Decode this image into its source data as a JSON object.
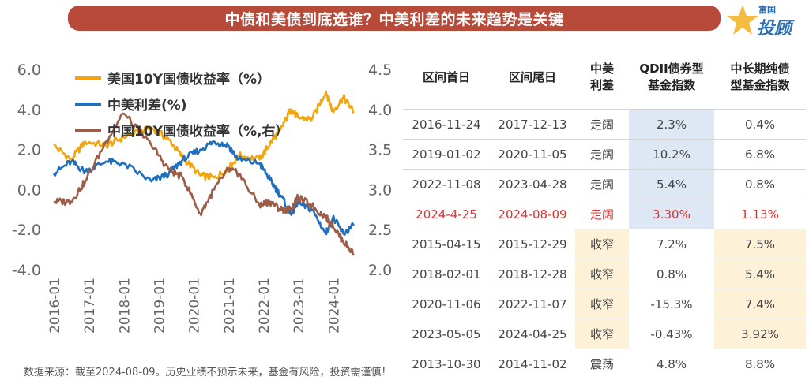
{
  "title": "中债和美债到底选谁？中美利差的未来趋势是关键",
  "brand": {
    "top": "富国",
    "bottom": "投顾"
  },
  "chart_data": {
    "type": "line",
    "legend": [
      "美国10Y国债收益率（%）",
      "中美利差(%)",
      "中国10Y国债收益率（%,右）"
    ],
    "colors": {
      "us": "#f2a50c",
      "spread": "#1f6fbf",
      "cn": "#9c5c46"
    },
    "left_axis": {
      "ticks": [
        "6.0",
        "4.0",
        "2.0",
        "0.0",
        "-2.0",
        "-4.0"
      ],
      "range": [
        -4,
        6
      ]
    },
    "right_axis": {
      "ticks": [
        "4.5",
        "4.0",
        "3.5",
        "3.0",
        "2.5",
        "2.0"
      ],
      "range": [
        2,
        4.5
      ]
    },
    "x_ticks": [
      "2016-01",
      "2017-01",
      "2018-01",
      "2019-01",
      "2020-01",
      "2021-01",
      "2022-01",
      "2023-01",
      "2024-01"
    ],
    "series": [
      {
        "name": "美国10Y国债收益率（%）",
        "axis": "left",
        "x": [
          2016.0,
          2016.5,
          2016.9,
          2017.5,
          2018.0,
          2018.8,
          2019.3,
          2019.7,
          2020.2,
          2020.6,
          2021.0,
          2021.3,
          2021.9,
          2022.2,
          2022.5,
          2022.8,
          2023.0,
          2023.4,
          2023.8,
          2024.0,
          2024.3,
          2024.6
        ],
        "values": [
          2.2,
          1.5,
          2.4,
          2.2,
          2.6,
          3.1,
          2.5,
          1.6,
          0.7,
          0.6,
          1.0,
          1.7,
          1.5,
          2.3,
          3.0,
          4.0,
          3.6,
          3.5,
          4.9,
          3.9,
          4.6,
          3.9
        ]
      },
      {
        "name": "中美利差(%)",
        "axis": "left",
        "x": [
          2016.0,
          2016.5,
          2016.9,
          2017.5,
          2018.0,
          2018.8,
          2019.3,
          2019.7,
          2020.2,
          2020.6,
          2021.0,
          2021.3,
          2021.9,
          2022.2,
          2022.5,
          2022.8,
          2023.0,
          2023.4,
          2023.8,
          2024.0,
          2024.3,
          2024.6
        ],
        "values": [
          0.8,
          1.4,
          0.9,
          1.4,
          1.3,
          0.4,
          0.8,
          1.5,
          2.0,
          2.4,
          2.2,
          1.5,
          1.3,
          0.5,
          -0.3,
          -1.2,
          -0.7,
          -1.0,
          -2.2,
          -1.4,
          -2.2,
          -1.8
        ]
      },
      {
        "name": "中国10Y国债收益率（%,右）",
        "axis": "right",
        "x": [
          2016.0,
          2016.5,
          2016.9,
          2017.5,
          2018.0,
          2018.8,
          2019.3,
          2019.7,
          2020.2,
          2020.6,
          2021.0,
          2021.3,
          2021.9,
          2022.2,
          2022.5,
          2022.8,
          2023.0,
          2023.4,
          2023.8,
          2024.0,
          2024.3,
          2024.6
        ],
        "values": [
          2.85,
          2.85,
          3.1,
          3.6,
          3.95,
          3.55,
          3.25,
          3.15,
          2.7,
          3.0,
          3.25,
          3.2,
          2.8,
          2.85,
          2.75,
          2.75,
          2.9,
          2.8,
          2.65,
          2.55,
          2.35,
          2.2
        ]
      }
    ]
  },
  "table": {
    "headers": [
      "区间首日",
      "区间尾日",
      "中美\n利差",
      "QDII债券型\n基金指数",
      "中长期纯债\n型基金指数"
    ],
    "rows": [
      [
        "2016-11-24",
        "2017-12-13",
        "走阔",
        "2.3%",
        "0.4%"
      ],
      [
        "2019-01-02",
        "2020-11-05",
        "走阔",
        "10.2%",
        "6.8%"
      ],
      [
        "2022-11-08",
        "2023-04-28",
        "走阔",
        "5.4%",
        "0.8%"
      ],
      [
        "2024-4-25",
        "2024-08-09",
        "走阔",
        "3.30%",
        "1.13%"
      ],
      [
        "2015-04-15",
        "2015-12-29",
        "收窄",
        "7.2%",
        "7.5%"
      ],
      [
        "2018-02-01",
        "2018-12-28",
        "收窄",
        "0.8%",
        "5.4%"
      ],
      [
        "2020-11-06",
        "2022-11-07",
        "收窄",
        "-15.3%",
        "7.4%"
      ],
      [
        "2023-05-05",
        "2024-04-25",
        "收窄",
        "-0.43%",
        "3.92%"
      ],
      [
        "2013-10-30",
        "2014-11-02",
        "震荡",
        "4.8%",
        "8.8%"
      ]
    ]
  },
  "footer": "数据来源：截至2024-08-09。历史业绩不预示未来，基金有风险，投资需谨慎！"
}
